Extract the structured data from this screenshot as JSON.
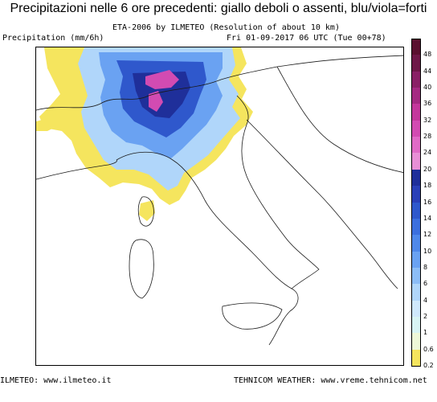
{
  "header": {
    "title": "Precipitazioni nelle 6 ore precedenti: giallo deboli o assenti, blu/viola=forti",
    "model_line": "ETA-2006 by ILMETEO (Resolution of about 10 km)",
    "variable_line": "Precipitation (mm/6h)",
    "run_line": "Fri 01-09-2017 06 UTC (Tue 00+78)"
  },
  "footer": {
    "left_credit": "ILMETEO: www.ilmeteo.it",
    "right_credit": "TEHNICOM WEATHER: www.vreme.tehnicom.net"
  },
  "legend": {
    "ticks": [
      "48",
      "44",
      "40",
      "36",
      "32",
      "28",
      "24",
      "20",
      "18",
      "16",
      "14",
      "12",
      "10",
      "8",
      "6",
      "4",
      "2",
      "1",
      "0.6",
      "0.2"
    ],
    "colors": [
      "#5a1030",
      "#6e1848",
      "#8a2066",
      "#a52a82",
      "#c4379c",
      "#d24bb2",
      "#e06ac6",
      "#e88fd6",
      "#1f2f9a",
      "#2a40b8",
      "#2f58cc",
      "#3c6fde",
      "#4f88ea",
      "#6aa2f2",
      "#8cbdf6",
      "#b0d6fa",
      "#cfe8fc",
      "#d8f4f4",
      "#eef8d8",
      "#f5e55e"
    ]
  },
  "map": {
    "land_color": "#ffffff",
    "coast_color": "#1a1a1a",
    "light_rain_color": "#f5e55e"
  }
}
